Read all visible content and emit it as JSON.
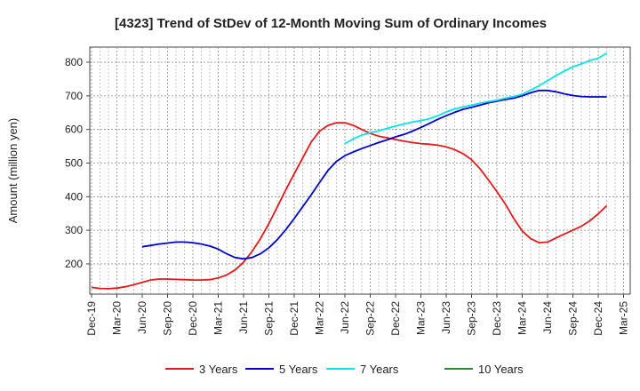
{
  "chart_data": {
    "type": "line",
    "title": "[4323]  Trend of StDev of 12-Month Moving Sum of Ordinary Incomes",
    "xlabel": "",
    "ylabel": "Amount (million yen)",
    "ylim": [
      110,
      845
    ],
    "yticks": [
      200,
      300,
      400,
      500,
      600,
      700,
      800
    ],
    "grid": true,
    "legend_position": "bottom",
    "x_tick_labels": [
      "Dec-19",
      "Mar-20",
      "Jun-20",
      "Sep-20",
      "Dec-20",
      "Mar-21",
      "Jun-21",
      "Sep-21",
      "Dec-21",
      "Mar-22",
      "Jun-22",
      "Sep-22",
      "Dec-22",
      "Mar-23",
      "Jun-23",
      "Sep-23",
      "Dec-23",
      "Mar-24",
      "Jun-24",
      "Sep-24",
      "Dec-24",
      "Mar-25"
    ],
    "series": [
      {
        "name": "3 Years",
        "color": "#e31a1c",
        "start_index": 0,
        "values": [
          130,
          127,
          126,
          128,
          132,
          138,
          145,
          152,
          155,
          155,
          154,
          153,
          152,
          152,
          153,
          158,
          167,
          182,
          205,
          237,
          275,
          320,
          370,
          420,
          468,
          515,
          562,
          595,
          612,
          620,
          620,
          612,
          600,
          588,
          580,
          575,
          570,
          565,
          561,
          558,
          556,
          553,
          548,
          540,
          528,
          510,
          483,
          450,
          415,
          378,
          335,
          298,
          275,
          263,
          265,
          277,
          289,
          300,
          312,
          328,
          349,
          373
        ]
      },
      {
        "name": "5 Years",
        "color": "#0000cc",
        "start_index": 6,
        "values": [
          251,
          255,
          259,
          262,
          265,
          265,
          263,
          259,
          253,
          244,
          230,
          219,
          215,
          219,
          230,
          248,
          272,
          302,
          335,
          370,
          405,
          442,
          478,
          505,
          522,
          533,
          543,
          552,
          561,
          569,
          578,
          585,
          595,
          606,
          618,
          630,
          641,
          651,
          660,
          666,
          672,
          679,
          684,
          689,
          693,
          700,
          709,
          716,
          716,
          712,
          706,
          701,
          698,
          697,
          697,
          697
        ]
      },
      {
        "name": "7 Years",
        "color": "#00e5e5",
        "start_index": 30,
        "values": [
          558,
          572,
          583,
          590,
          596,
          603,
          610,
          616,
          622,
          626,
          632,
          641,
          652,
          661,
          667,
          672,
          678,
          683,
          687,
          693,
          698,
          705,
          717,
          730,
          745,
          760,
          774,
          786,
          795,
          805,
          812,
          827
        ]
      },
      {
        "name": "10 Years",
        "color": "#2e8b2e",
        "start_index": 0,
        "values": []
      }
    ]
  }
}
